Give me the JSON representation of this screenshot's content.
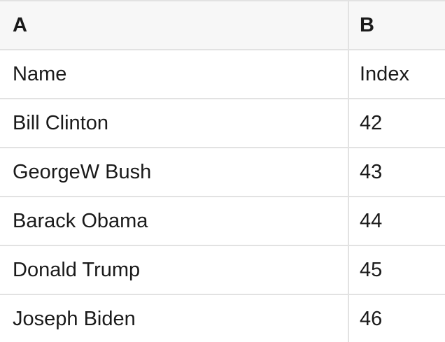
{
  "table": {
    "column_headers": [
      "A",
      "B"
    ],
    "rows": [
      {
        "A": "Name",
        "B": "Index"
      },
      {
        "A": "Bill Clinton",
        "B": "42"
      },
      {
        "A": "GeorgeW Bush",
        "B": "43"
      },
      {
        "A": "Barack Obama",
        "B": "44"
      },
      {
        "A": "Donald Trump",
        "B": "45"
      },
      {
        "A": "Joseph Biden",
        "B": "46"
      }
    ]
  },
  "colors": {
    "header_background": "#f7f7f7",
    "gridline": "#e2e2e2",
    "text": "#1a1a1a",
    "cell_background": "#ffffff"
  }
}
